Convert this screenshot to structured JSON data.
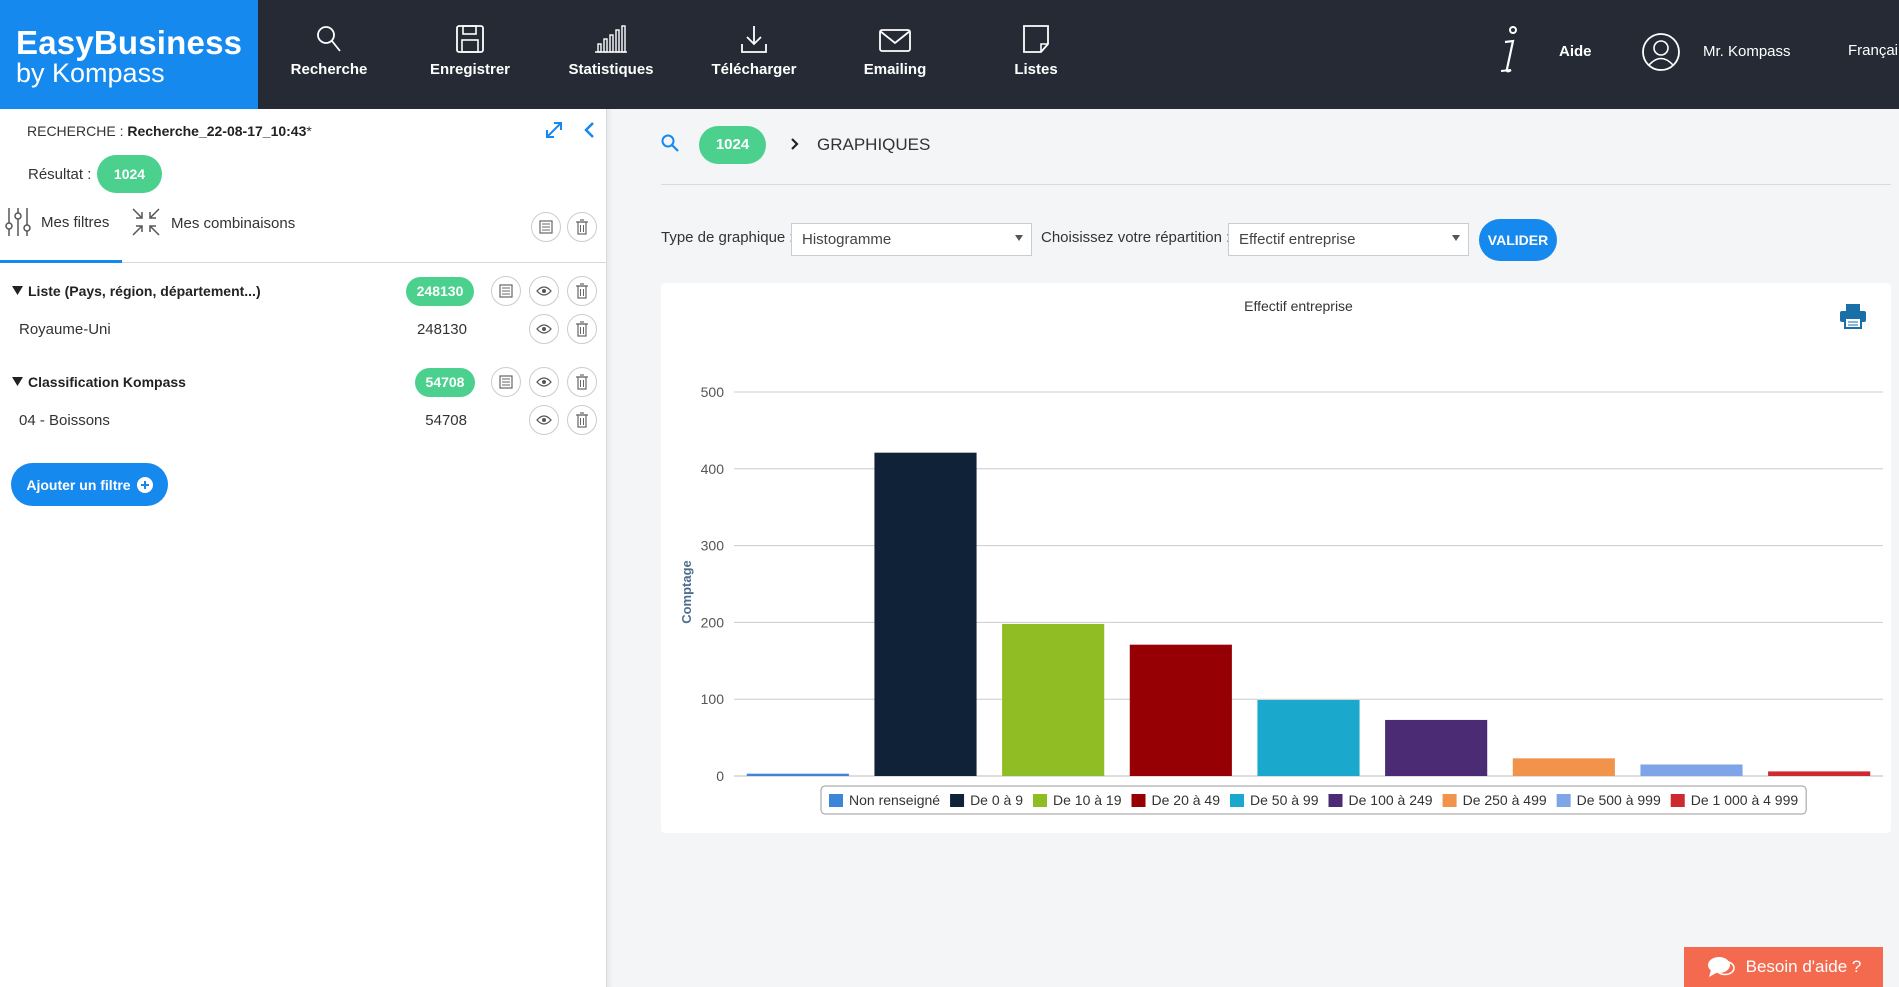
{
  "brand": {
    "line1": "EasyBusiness",
    "line2": "by Kompass"
  },
  "nav": [
    {
      "label": "Recherche",
      "icon": "search-icon"
    },
    {
      "label": "Enregistrer",
      "icon": "save-icon"
    },
    {
      "label": "Statistiques",
      "icon": "stats-icon"
    },
    {
      "label": "Télécharger",
      "icon": "download-icon"
    },
    {
      "label": "Emailing",
      "icon": "mail-icon"
    },
    {
      "label": "Listes",
      "icon": "list-icon"
    }
  ],
  "topright": {
    "help": "Aide",
    "user": "Mr. Kompass",
    "language": "Françai"
  },
  "sidebar": {
    "search_prefix": "RECHERCHE : ",
    "search_name": "Recherche_22-08-17_10:43",
    "search_suffix": "*",
    "result_label": "Résultat :",
    "result_count": "1024",
    "tabs": {
      "filters": "Mes filtres",
      "combinations": "Mes combinaisons"
    },
    "groups": [
      {
        "title": "Liste (Pays, région, département...)",
        "count": "248130",
        "items": [
          {
            "label": "Royaume-Uni",
            "count": "248130"
          }
        ]
      },
      {
        "title": "Classification Kompass",
        "count": "54708",
        "items": [
          {
            "label": "04 - Boissons",
            "count": "54708"
          }
        ]
      }
    ],
    "add_filter": "Ajouter un filtre"
  },
  "main": {
    "breadcrumb_count": "1024",
    "breadcrumb_title": "GRAPHIQUES",
    "chart_type_label": "Type de graphique :",
    "chart_type_value": "Histogramme",
    "repartition_label": "Choisissez votre répartition :",
    "repartition_value": "Effectif entreprise",
    "validate": "VALIDER"
  },
  "help_button": "Besoin d'aide ?",
  "chart_data": {
    "type": "bar",
    "title": "Effectif entreprise",
    "xlabel": "",
    "ylabel": "Comptage",
    "ylim": [
      0,
      500
    ],
    "yticks": [
      0,
      100,
      200,
      300,
      400,
      500
    ],
    "grid": true,
    "legend_position": "bottom",
    "series": [
      {
        "name": "Non renseigné",
        "value": 3,
        "color": "#3d85d8"
      },
      {
        "name": "De 0 à 9",
        "value": 421,
        "color": "#0f2238"
      },
      {
        "name": "De 10 à 19",
        "value": 198,
        "color": "#8fbd23"
      },
      {
        "name": "De 20 à 49",
        "value": 171,
        "color": "#960005"
      },
      {
        "name": "De 50 à 99",
        "value": 99,
        "color": "#1aa8cd"
      },
      {
        "name": "De 100 à 249",
        "value": 73,
        "color": "#4a2b74"
      },
      {
        "name": "De 250 à 499",
        "value": 23,
        "color": "#f1934a"
      },
      {
        "name": "De 500 à 999",
        "value": 15,
        "color": "#7ea5e8"
      },
      {
        "name": "De 1 000 à 4 999",
        "value": 6,
        "color": "#cc2a2f"
      }
    ]
  }
}
